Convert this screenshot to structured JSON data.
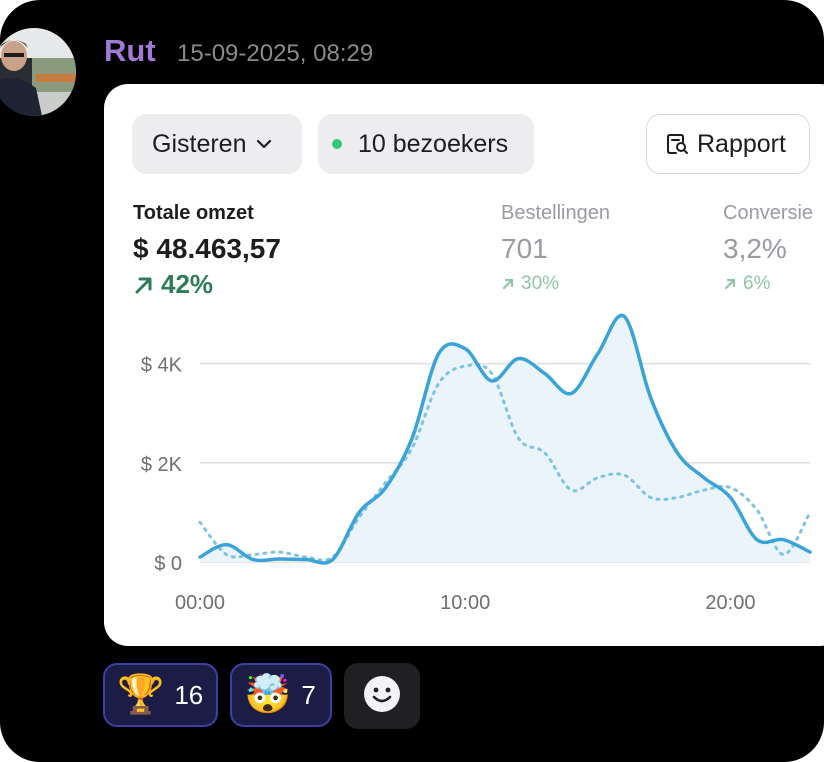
{
  "message": {
    "author": "Rut",
    "timestamp": "15-09-2025, 08:29"
  },
  "card": {
    "period_label": "Gisteren",
    "visitors_label": "10 bezoekers",
    "report_label": "Rapport",
    "metrics": [
      {
        "label": "Totale omzet",
        "value": "$ 48.463,57",
        "change": "42%"
      },
      {
        "label": "Bestellingen",
        "value": "701",
        "change": "30%"
      },
      {
        "label": "Conversie",
        "value": "3,2%",
        "change": "6%"
      }
    ]
  },
  "chart_data": {
    "type": "line",
    "title": "",
    "xlabel": "",
    "ylabel": "",
    "x_ticks": [
      "00:00",
      "10:00",
      "20:00"
    ],
    "y_ticks": [
      "$ 0",
      "$ 2K",
      "$ 4K"
    ],
    "ylim": [
      0,
      5000
    ],
    "xlim": [
      0,
      23
    ],
    "grid": true,
    "series": [
      {
        "style": "solid",
        "color": "#3aa3d9",
        "x": [
          0,
          1,
          2,
          3,
          4,
          5,
          6,
          7,
          8,
          9,
          10,
          11,
          12,
          13,
          14,
          15,
          16,
          17,
          18,
          19,
          20,
          21,
          22,
          23
        ],
        "values": [
          100,
          350,
          50,
          60,
          50,
          50,
          1000,
          1500,
          2500,
          4200,
          4300,
          3650,
          4100,
          3800,
          3400,
          4200,
          4950,
          3300,
          2200,
          1700,
          1300,
          450,
          450,
          200
        ]
      },
      {
        "style": "dotted",
        "color": "#7fc3e4",
        "x": [
          0,
          1,
          2,
          3,
          4,
          5,
          6,
          7,
          8,
          9,
          10,
          11,
          12,
          13,
          14,
          15,
          16,
          17,
          18,
          19,
          20,
          21,
          22,
          23
        ],
        "values": [
          800,
          150,
          150,
          200,
          100,
          100,
          900,
          1600,
          2300,
          3600,
          3950,
          3800,
          2500,
          2200,
          1450,
          1700,
          1750,
          1300,
          1300,
          1450,
          1500,
          1050,
          150,
          1000
        ]
      }
    ]
  },
  "reactions": [
    {
      "emoji": "🏆",
      "count": "16"
    },
    {
      "emoji": "🤯",
      "count": "7"
    }
  ],
  "icons": {
    "chevron": "chevron-down-icon",
    "report": "report-search-icon",
    "add_reaction": "smiley-icon"
  },
  "colors": {
    "author": "#a07ad6",
    "positive": "#2f7d57",
    "line": "#3aa3d9",
    "status_dot": "#34c77b",
    "reaction_border": "#3e3fa3"
  }
}
